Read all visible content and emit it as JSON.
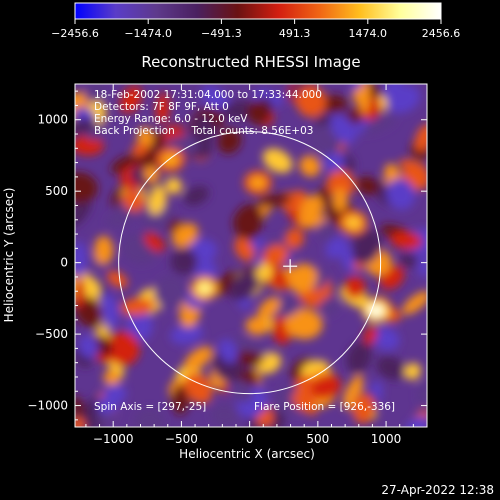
{
  "chart_data": {
    "type": "heatmap",
    "title": "Reconstructed RHESSI Image",
    "xlabel": "Heliocentric X (arcsec)",
    "ylabel": "Heliocentric Y (arcsec)",
    "xlim": [
      -1280,
      1300
    ],
    "ylim": [
      -1150,
      1250
    ],
    "xticks": [
      -1000,
      -500,
      0,
      500,
      1000
    ],
    "xtick_labels": [
      "−1000",
      "−500",
      "0",
      "500",
      "1000"
    ],
    "yticks": [
      -1000,
      -500,
      0,
      500,
      1000
    ],
    "ytick_labels": [
      "−1000",
      "−500",
      "0",
      "500",
      "1000"
    ],
    "colorbar": {
      "min": -2456.6,
      "max": 2456.6,
      "ticks": [
        -2456.6,
        -1474.0,
        -491.3,
        491.3,
        1474.0,
        2456.6
      ],
      "tick_labels": [
        "−2456.6",
        "−1474.0",
        "−491.3",
        "491.3",
        "1474.0",
        "2456.6"
      ],
      "stops": [
        "#0000ff",
        "#5a3cc8",
        "#5e3a8c",
        "#4a2060",
        "#6a1212",
        "#d21e10",
        "#f06414",
        "#ffbe1e",
        "#ffff9c",
        "#ffffff"
      ]
    },
    "info_lines": [
      "18-Feb-2002 17:31:04.000 to 17:33:44.000",
      "Detectors: 7F 8F 9F, Att 0",
      "Energy Range: 6.0 - 12.0 keV",
      "Back Projection     Total counts: 8.56E+03"
    ],
    "spin_axis_text": "Spin Axis = [297,-25]",
    "flare_position_text": "Flare Position = [926,-336]",
    "solar_disk": {
      "center": [
        0,
        0
      ],
      "radius": 960
    },
    "marker_cross": [
      297,
      -25
    ],
    "flare_position": [
      926,
      -336
    ],
    "timestamp": "27-Apr-2022 12:38",
    "bright_sources": [
      {
        "x": 926,
        "y": -336,
        "value": 2456.6
      },
      {
        "x": -330,
        "y": -180,
        "value": 1900
      },
      {
        "x": 760,
        "y": 280,
        "value": 1500
      },
      {
        "x": -580,
        "y": 720,
        "value": 1300
      },
      {
        "x": 60,
        "y": 560,
        "value": 1250
      }
    ]
  }
}
